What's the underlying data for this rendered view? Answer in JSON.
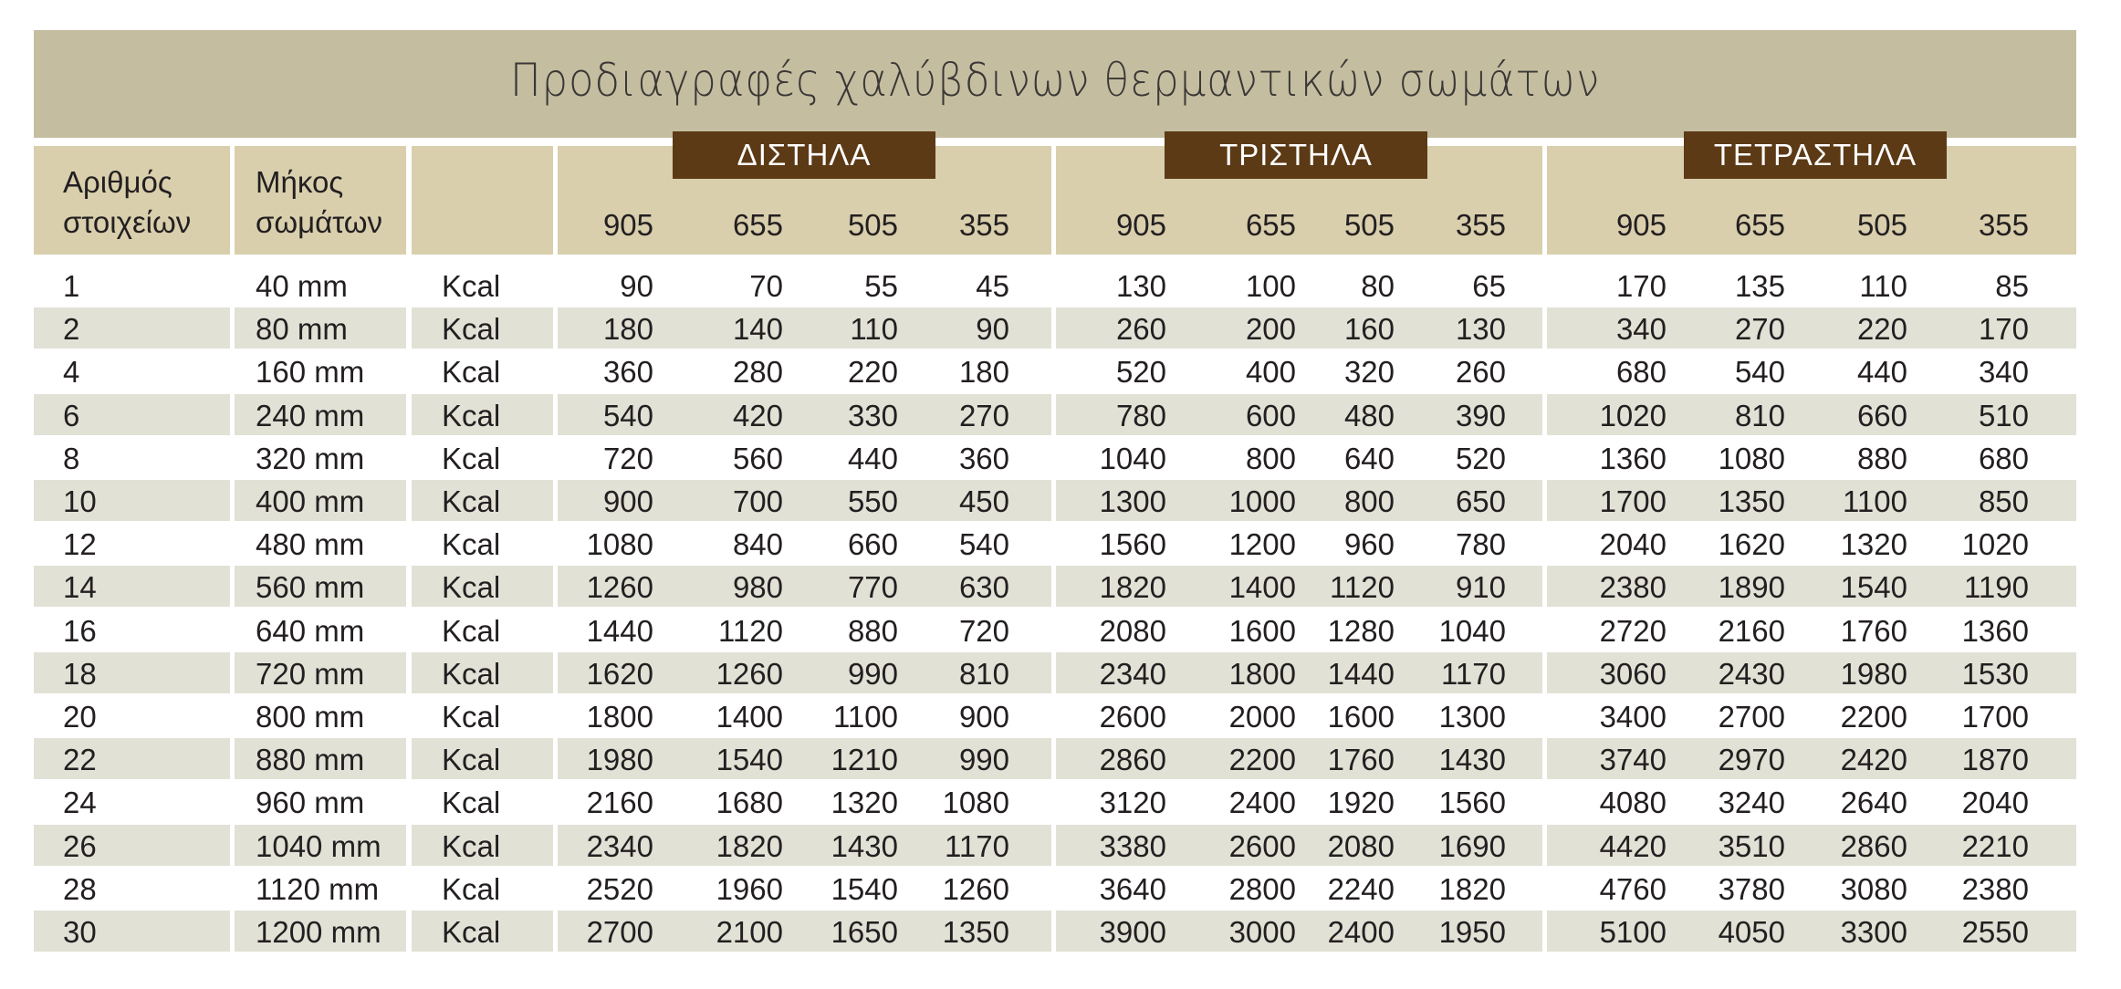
{
  "title": "Προδιαγραφές χαλύβδινων θερμαντικών σωμάτων",
  "colors": {
    "title_band": "#c4bda0",
    "header": "#d9cfad",
    "badge": "#5c3a15",
    "alt_row": "#e1e1d6"
  },
  "headers": {
    "count": [
      "Αριθμός",
      "στοιχείων"
    ],
    "length": [
      "Μήκος",
      "σωμάτων"
    ],
    "groups": [
      {
        "label": "ΔΙΣΤΗΛΑ",
        "heights": [
          "905",
          "655",
          "505",
          "355"
        ]
      },
      {
        "label": "ΤΡΙΣΤΗΛΑ",
        "heights": [
          "905",
          "655",
          "505",
          "355"
        ]
      },
      {
        "label": "ΤΕΤΡΑΣΤΗΛΑ",
        "heights": [
          "905",
          "655",
          "505",
          "355"
        ]
      }
    ]
  },
  "rows": [
    {
      "count": "1",
      "length": "40 mm",
      "unit": "Kcal",
      "values": [
        "90",
        "70",
        "55",
        "45",
        "130",
        "100",
        "80",
        "65",
        "170",
        "135",
        "110",
        "85"
      ]
    },
    {
      "count": "2",
      "length": "80 mm",
      "unit": "Kcal",
      "values": [
        "180",
        "140",
        "110",
        "90",
        "260",
        "200",
        "160",
        "130",
        "340",
        "270",
        "220",
        "170"
      ]
    },
    {
      "count": "4",
      "length": "160 mm",
      "unit": "Kcal",
      "values": [
        "360",
        "280",
        "220",
        "180",
        "520",
        "400",
        "320",
        "260",
        "680",
        "540",
        "440",
        "340"
      ]
    },
    {
      "count": "6",
      "length": "240 mm",
      "unit": "Kcal",
      "values": [
        "540",
        "420",
        "330",
        "270",
        "780",
        "600",
        "480",
        "390",
        "1020",
        "810",
        "660",
        "510"
      ]
    },
    {
      "count": "8",
      "length": "320 mm",
      "unit": "Kcal",
      "values": [
        "720",
        "560",
        "440",
        "360",
        "1040",
        "800",
        "640",
        "520",
        "1360",
        "1080",
        "880",
        "680"
      ]
    },
    {
      "count": "10",
      "length": "400 mm",
      "unit": "Kcal",
      "values": [
        "900",
        "700",
        "550",
        "450",
        "1300",
        "1000",
        "800",
        "650",
        "1700",
        "1350",
        "1100",
        "850"
      ]
    },
    {
      "count": "12",
      "length": "480 mm",
      "unit": "Kcal",
      "values": [
        "1080",
        "840",
        "660",
        "540",
        "1560",
        "1200",
        "960",
        "780",
        "2040",
        "1620",
        "1320",
        "1020"
      ]
    },
    {
      "count": "14",
      "length": "560 mm",
      "unit": "Kcal",
      "values": [
        "1260",
        "980",
        "770",
        "630",
        "1820",
        "1400",
        "1120",
        "910",
        "2380",
        "1890",
        "1540",
        "1190"
      ]
    },
    {
      "count": "16",
      "length": "640 mm",
      "unit": "Kcal",
      "values": [
        "1440",
        "1120",
        "880",
        "720",
        "2080",
        "1600",
        "1280",
        "1040",
        "2720",
        "2160",
        "1760",
        "1360"
      ]
    },
    {
      "count": "18",
      "length": "720 mm",
      "unit": "Kcal",
      "values": [
        "1620",
        "1260",
        "990",
        "810",
        "2340",
        "1800",
        "1440",
        "1170",
        "3060",
        "2430",
        "1980",
        "1530"
      ]
    },
    {
      "count": "20",
      "length": "800 mm",
      "unit": "Kcal",
      "values": [
        "1800",
        "1400",
        "1100",
        "900",
        "2600",
        "2000",
        "1600",
        "1300",
        "3400",
        "2700",
        "2200",
        "1700"
      ]
    },
    {
      "count": "22",
      "length": "880 mm",
      "unit": "Kcal",
      "values": [
        "1980",
        "1540",
        "1210",
        "990",
        "2860",
        "2200",
        "1760",
        "1430",
        "3740",
        "2970",
        "2420",
        "1870"
      ]
    },
    {
      "count": "24",
      "length": "960 mm",
      "unit": "Kcal",
      "values": [
        "2160",
        "1680",
        "1320",
        "1080",
        "3120",
        "2400",
        "1920",
        "1560",
        "4080",
        "3240",
        "2640",
        "2040"
      ]
    },
    {
      "count": "26",
      "length": "1040 mm",
      "unit": "Kcal",
      "values": [
        "2340",
        "1820",
        "1430",
        "1170",
        "3380",
        "2600",
        "2080",
        "1690",
        "4420",
        "3510",
        "2860",
        "2210"
      ]
    },
    {
      "count": "28",
      "length": "1120 mm",
      "unit": "Kcal",
      "values": [
        "2520",
        "1960",
        "1540",
        "1260",
        "3640",
        "2800",
        "2240",
        "1820",
        "4760",
        "3780",
        "3080",
        "2380"
      ]
    },
    {
      "count": "30",
      "length": "1200 mm",
      "unit": "Kcal",
      "values": [
        "2700",
        "2100",
        "1650",
        "1350",
        "3900",
        "3000",
        "2400",
        "1950",
        "5100",
        "4050",
        "3300",
        "2550"
      ]
    }
  ]
}
